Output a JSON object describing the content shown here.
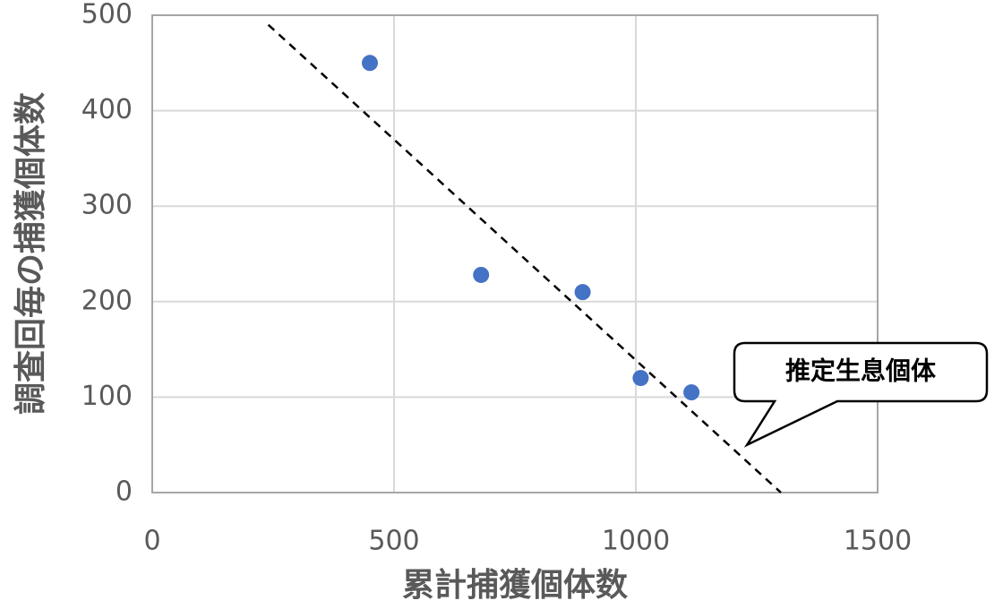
{
  "chart_data": {
    "type": "scatter",
    "x_label": "累計捕獲個体数",
    "y_label": "調査回毎の捕獲個体数",
    "x": [
      450,
      680,
      890,
      1010,
      1115
    ],
    "series": [
      {
        "color": "#4472c4",
        "values": [
          450,
          228,
          210,
          120,
          105
        ]
      }
    ],
    "trend_line": {
      "x": [
        240,
        1300
      ],
      "values": [
        490,
        0
      ],
      "color": "#000000",
      "dashed": true
    },
    "annotation": {
      "text": "推定生息個体",
      "x": 1230,
      "y": 50
    },
    "xlim": [
      0,
      1500
    ],
    "xticks": [
      0,
      500,
      1000,
      1500
    ],
    "ylim": [
      0,
      500
    ],
    "yticks": [
      0,
      100,
      200,
      300,
      400,
      500
    ],
    "grid": true
  }
}
